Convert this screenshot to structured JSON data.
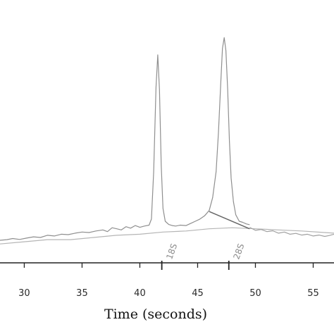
{
  "chart_data": {
    "type": "line",
    "title": "",
    "xlabel": "Time (seconds)",
    "ylabel": "",
    "xlim": [
      27.9,
      56.8
    ],
    "ylim": [
      -0.6,
      10.0
    ],
    "grid": false,
    "x_ticks": [
      30,
      35,
      40,
      45,
      50,
      55
    ],
    "x_tick_labels": [
      "30",
      "35",
      "40",
      "45",
      "50",
      "55"
    ],
    "annotations": [
      {
        "label": "18S",
        "x": 41.9
      },
      {
        "label": "28S",
        "x": 47.7
      }
    ],
    "series": [
      {
        "color": "#8f8f8f",
        "x": [
          27.9,
          28.5,
          29.0,
          29.6,
          30.2,
          30.8,
          31.4,
          32.0,
          32.6,
          33.2,
          33.8,
          34.4,
          35.0,
          35.6,
          36.2,
          36.8,
          37.2,
          37.6,
          38.0,
          38.4,
          38.8,
          39.2,
          39.6,
          40.0,
          40.4,
          40.8,
          41.0,
          41.2,
          41.4,
          41.55,
          41.7,
          41.85,
          42.0,
          42.2,
          42.5,
          42.8,
          43.1,
          43.5,
          44.0,
          44.4,
          44.8,
          45.2,
          45.6,
          46.0,
          46.3,
          46.6,
          46.8,
          47.0,
          47.15,
          47.3,
          47.45,
          47.6,
          47.75,
          47.9,
          48.1,
          48.3,
          48.6,
          48.9,
          49.2,
          49.5
        ],
        "y": [
          0.02,
          0.05,
          0.1,
          0.06,
          0.12,
          0.18,
          0.15,
          0.25,
          0.22,
          0.3,
          0.28,
          0.35,
          0.4,
          0.38,
          0.45,
          0.5,
          0.42,
          0.6,
          0.55,
          0.5,
          0.65,
          0.58,
          0.7,
          0.62,
          0.68,
          0.72,
          1.0,
          3.2,
          7.1,
          8.6,
          7.0,
          3.5,
          1.5,
          0.9,
          0.75,
          0.7,
          0.68,
          0.72,
          0.7,
          0.8,
          0.9,
          1.0,
          1.15,
          1.4,
          2.0,
          3.2,
          5.0,
          7.3,
          8.9,
          9.4,
          8.8,
          7.0,
          4.6,
          2.9,
          1.8,
          1.2,
          0.9,
          0.85,
          0.78,
          0.74
        ]
      },
      {
        "color": "#b5b5b5",
        "x": [
          27.9,
          30.0,
          32.0,
          34.0,
          36.0,
          38.0,
          40.0,
          42.0,
          44.0,
          46.0,
          48.0,
          50.0,
          52.0,
          54.0,
          56.0,
          56.8
        ],
        "y": [
          -0.15,
          -0.05,
          0.05,
          0.05,
          0.15,
          0.25,
          0.3,
          0.4,
          0.45,
          0.55,
          0.6,
          0.55,
          0.5,
          0.45,
          0.38,
          0.35
        ]
      },
      {
        "color": "#a0a0a0",
        "x": [
          49.5,
          50.0,
          50.5,
          51.0,
          51.5,
          52.0,
          52.5,
          53.0,
          53.5,
          54.0,
          54.5,
          55.0,
          55.5,
          56.0,
          56.4,
          56.8
        ],
        "y": [
          0.62,
          0.48,
          0.52,
          0.42,
          0.46,
          0.35,
          0.4,
          0.3,
          0.34,
          0.26,
          0.3,
          0.22,
          0.26,
          0.2,
          0.24,
          0.3
        ]
      },
      {
        "color": "#666666",
        "x": [
          46.0,
          49.5
        ],
        "y": [
          1.35,
          0.55
        ]
      }
    ]
  }
}
